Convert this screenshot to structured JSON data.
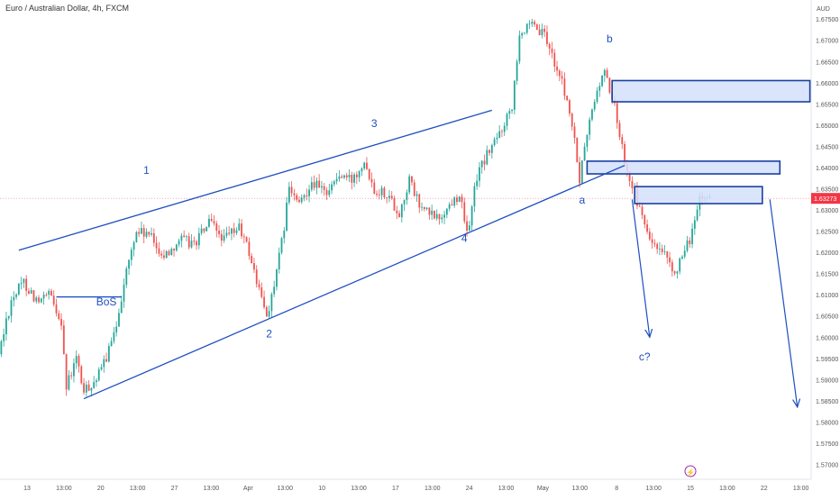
{
  "header": {
    "title": "Euro / Australian Dollar, 4h, FXCM"
  },
  "colors": {
    "up": "#26a69a",
    "down": "#ef5350",
    "annotation": "#1e4fbf",
    "zone_fill": "#d3e0fb",
    "zone_border": "#1a3fa0",
    "price_tag": "#f23645",
    "axis_text": "#555555"
  },
  "chart_data": {
    "type": "candlestick",
    "currency": "AUD",
    "y_ticks": [
      "1.67500",
      "1.67000",
      "1.66500",
      "1.66000",
      "1.65500",
      "1.65000",
      "1.64500",
      "1.64000",
      "1.63500",
      "1.63000",
      "1.62500",
      "1.62000",
      "1.61500",
      "1.61000",
      "1.60500",
      "1.60000",
      "1.59500",
      "1.59000",
      "1.58500",
      "1.58000",
      "1.57500",
      "1.57000"
    ],
    "x_ticks": [
      "13",
      "13:00",
      "20",
      "13:00",
      "27",
      "13:00",
      "Apr",
      "13:00",
      "10",
      "13:00",
      "17",
      "13:00",
      "24",
      "13:00",
      "May",
      "13:00",
      "8",
      "13:00",
      "15",
      "13:00",
      "22",
      "13:00"
    ],
    "ylim": [
      1.5665,
      1.6795
    ],
    "last_price": "1.63273",
    "last_price_value": 1.63273,
    "wave_labels": [
      {
        "text": "1",
        "bar": 58,
        "price": 1.6385
      },
      {
        "text": "BoS",
        "bar": 42,
        "price": 1.6075
      },
      {
        "text": "2",
        "bar": 107,
        "price": 1.6
      },
      {
        "text": "3",
        "bar": 149,
        "price": 1.6495
      },
      {
        "text": "4",
        "bar": 185,
        "price": 1.6225
      },
      {
        "text": "a",
        "bar": 232,
        "price": 1.6315
      },
      {
        "text": "b",
        "bar": 243,
        "price": 1.6695
      },
      {
        "text": "c?",
        "bar": 257,
        "price": 1.5945
      }
    ],
    "trendlines": [
      {
        "bar1": 7,
        "price1": 1.6205,
        "bar2": 196,
        "price2": 1.6535
      },
      {
        "bar1": 33,
        "price1": 1.5855,
        "bar2": 249,
        "price2": 1.6405
      },
      {
        "bar1": 22,
        "price1": 1.6095,
        "bar2": 48,
        "price2": 1.6095
      }
    ],
    "arrows": [
      {
        "bar1": 252,
        "price1": 1.6325,
        "bar2": 259,
        "price2": 1.6
      },
      {
        "bar1": 307,
        "price1": 1.6325,
        "bar2": 318,
        "price2": 1.5835
      }
    ],
    "zones": [
      {
        "bar1": 244,
        "bar2": 323,
        "top": 1.6605,
        "bottom": 1.6555
      },
      {
        "bar1": 234,
        "bar2": 311,
        "top": 1.6415,
        "bottom": 1.6385
      },
      {
        "bar1": 253,
        "bar2": 304,
        "top": 1.6355,
        "bottom": 1.6315
      }
    ],
    "anchors": [
      [
        0,
        1.596
      ],
      [
        5,
        1.609
      ],
      [
        10,
        1.613
      ],
      [
        16,
        1.608
      ],
      [
        20,
        1.61
      ],
      [
        25,
        1.604
      ],
      [
        27,
        1.588
      ],
      [
        31,
        1.595
      ],
      [
        34,
        1.587
      ],
      [
        40,
        1.591
      ],
      [
        46,
        1.6
      ],
      [
        50,
        1.613
      ],
      [
        55,
        1.625
      ],
      [
        60,
        1.624
      ],
      [
        66,
        1.619
      ],
      [
        72,
        1.623
      ],
      [
        78,
        1.622
      ],
      [
        84,
        1.627
      ],
      [
        90,
        1.623
      ],
      [
        96,
        1.626
      ],
      [
        100,
        1.62
      ],
      [
        104,
        1.611
      ],
      [
        107,
        1.605
      ],
      [
        110,
        1.612
      ],
      [
        113,
        1.622
      ],
      [
        116,
        1.635
      ],
      [
        120,
        1.631
      ],
      [
        125,
        1.637
      ],
      [
        130,
        1.634
      ],
      [
        136,
        1.638
      ],
      [
        141,
        1.637
      ],
      [
        146,
        1.642
      ],
      [
        150,
        1.635
      ],
      [
        155,
        1.634
      ],
      [
        160,
        1.629
      ],
      [
        164,
        1.637
      ],
      [
        168,
        1.631
      ],
      [
        172,
        1.629
      ],
      [
        176,
        1.628
      ],
      [
        180,
        1.631
      ],
      [
        184,
        1.634
      ],
      [
        187,
        1.624
      ],
      [
        191,
        1.638
      ],
      [
        195,
        1.643
      ],
      [
        200,
        1.648
      ],
      [
        205,
        1.655
      ],
      [
        208,
        1.672
      ],
      [
        213,
        1.673
      ],
      [
        218,
        1.671
      ],
      [
        222,
        1.665
      ],
      [
        226,
        1.658
      ],
      [
        229,
        1.65
      ],
      [
        232,
        1.637
      ],
      [
        235,
        1.648
      ],
      [
        238,
        1.656
      ],
      [
        242,
        1.663
      ],
      [
        246,
        1.654
      ],
      [
        250,
        1.642
      ],
      [
        254,
        1.634
      ],
      [
        258,
        1.626
      ],
      [
        262,
        1.621
      ],
      [
        266,
        1.619
      ],
      [
        269,
        1.615
      ],
      [
        273,
        1.618
      ],
      [
        277,
        1.625
      ],
      [
        280,
        1.632
      ],
      [
        283,
        1.633
      ]
    ]
  }
}
